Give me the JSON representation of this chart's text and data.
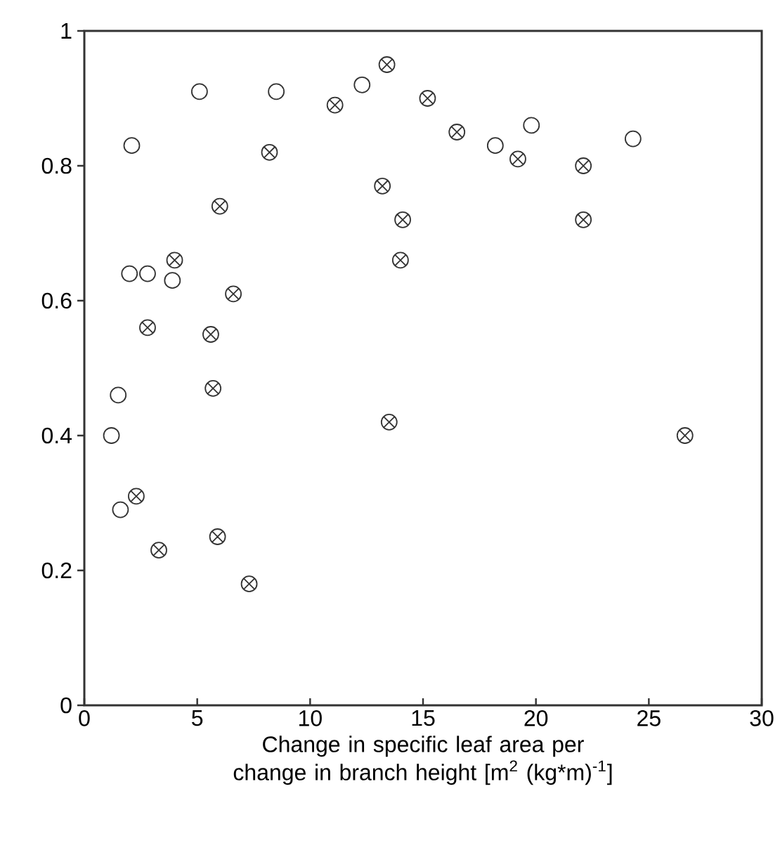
{
  "chart_data": {
    "type": "scatter",
    "xlabel": "Change in specific leaf area per change in branch height [m$^{2}$ (kg*m)$^{-1}$]",
    "xlim": [
      0,
      30
    ],
    "ylim": [
      0,
      1
    ],
    "xticks": [
      0,
      5,
      10,
      15,
      20,
      25,
      30
    ],
    "yticks": [
      0,
      0.2,
      0.4,
      0.6,
      0.8,
      1
    ],
    "series": [
      {
        "color": "#333333",
        "marker": "circle",
        "x": [
          1.2,
          1.5,
          1.6,
          2.1,
          2.0,
          2.8,
          3.9,
          5.1,
          8.5,
          12.3,
          19.8,
          18.2,
          24.3
        ],
        "values": [
          0.4,
          0.46,
          0.29,
          0.83,
          0.64,
          0.64,
          0.63,
          0.91,
          0.91,
          0.92,
          0.86,
          0.83,
          0.84
        ]
      },
      {
        "color": "#333333",
        "marker": "cross",
        "x": [
          2.3,
          3.3,
          2.8,
          4.0,
          6.0,
          6.6,
          5.6,
          5.7,
          5.9,
          7.3,
          8.2,
          11.1,
          13.4,
          13.2,
          14.1,
          13.5,
          14.0,
          15.2,
          16.5,
          19.2,
          22.1,
          22.1,
          26.6
        ],
        "values": [
          0.31,
          0.23,
          0.56,
          0.66,
          0.74,
          0.61,
          0.55,
          0.47,
          0.25,
          0.18,
          0.82,
          0.89,
          0.95,
          0.77,
          0.72,
          0.42,
          0.66,
          0.9,
          0.85,
          0.81,
          0.8,
          0.72,
          0.4
        ]
      }
    ]
  }
}
